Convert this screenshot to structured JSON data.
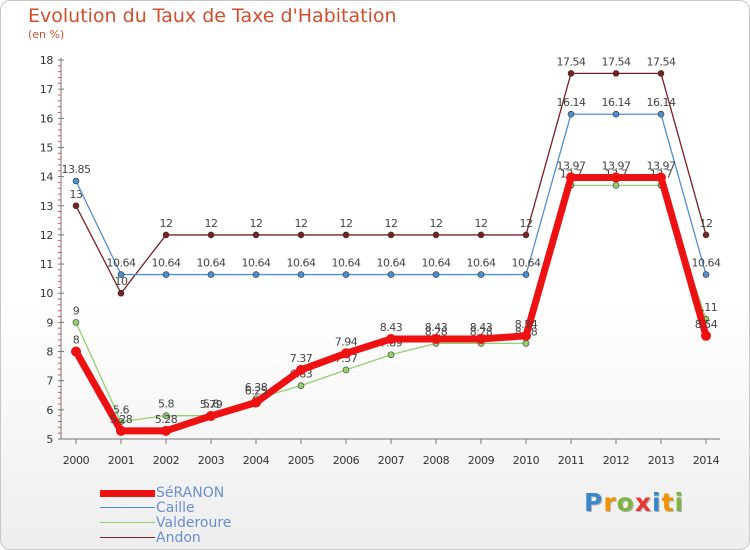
{
  "title": "Evolution du Taux de Taxe d'Habitation",
  "subtitle": "(en %)",
  "logo": {
    "letters": [
      "P",
      "r",
      "o",
      "x",
      "i",
      "t",
      "i"
    ],
    "colors": [
      "#3a86c8",
      "#f39200",
      "#7cb342",
      "#e53935",
      "#3a86c8",
      "#f39200",
      "#7cb342"
    ]
  },
  "chart_data": {
    "type": "line",
    "x": [
      "2000",
      "2001",
      "2002",
      "2003",
      "2004",
      "2005",
      "2006",
      "2007",
      "2008",
      "2009",
      "2010",
      "2011",
      "2012",
      "2013",
      "2014"
    ],
    "ylim": [
      5,
      18
    ],
    "yticks": [
      "5",
      "6",
      "7",
      "8",
      "9",
      "10",
      "11",
      "12",
      "13",
      "14",
      "15",
      "16",
      "17",
      "18"
    ],
    "grid": false,
    "legend_position": "bottom-left",
    "series": [
      {
        "name": "Andon",
        "color": "#7a2020",
        "values": [
          13,
          10,
          12,
          12,
          12,
          12,
          12,
          12,
          12,
          12,
          12,
          17.54,
          17.54,
          17.54,
          12
        ],
        "labels": [
          "13",
          "10",
          "12",
          "12",
          "12",
          "12",
          "12",
          "12",
          "12",
          "12",
          "12",
          "17.54",
          "17.54",
          "17.54",
          "12"
        ]
      },
      {
        "name": "Caille",
        "color": "#4f8fd0",
        "values": [
          13.85,
          10.64,
          10.64,
          10.64,
          10.64,
          10.64,
          10.64,
          10.64,
          10.64,
          10.64,
          10.64,
          16.14,
          16.14,
          16.14,
          10.64
        ],
        "labels": [
          "13.85",
          "10.64",
          "10.64",
          "10.64",
          "10.64",
          "10.64",
          "10.64",
          "10.64",
          "10.64",
          "10.64",
          "10.64",
          "16.14",
          "16.14",
          "16.14",
          "10.64"
        ]
      },
      {
        "name": "Valderoure",
        "color": "#93d06f",
        "values": [
          9,
          5.6,
          5.8,
          5.8,
          6.38,
          6.83,
          7.37,
          7.89,
          8.28,
          8.28,
          8.28,
          13.7,
          13.7,
          13.7,
          9.11
        ],
        "labels": [
          "9",
          "5.6",
          "5.8",
          "5.8",
          "6.38",
          "6.83",
          "7.37",
          "7.89",
          "8.28",
          "8.28",
          "8.28",
          "13.7",
          "13.7",
          "13.7",
          "9.11"
        ]
      },
      {
        "name": "SéRANON",
        "color": "#ee1111",
        "values": [
          8,
          5.28,
          5.28,
          5.79,
          6.25,
          7.37,
          7.94,
          8.43,
          8.43,
          8.43,
          8.54,
          13.97,
          13.97,
          13.97,
          8.54
        ],
        "labels": [
          "8",
          "5.28",
          "5.28",
          "5.79",
          "6.25",
          "7.37",
          "7.94",
          "8.43",
          "8.43",
          "8.43",
          "8.54",
          "13.97",
          "13.97",
          "13.97",
          "8.54"
        ]
      }
    ]
  }
}
